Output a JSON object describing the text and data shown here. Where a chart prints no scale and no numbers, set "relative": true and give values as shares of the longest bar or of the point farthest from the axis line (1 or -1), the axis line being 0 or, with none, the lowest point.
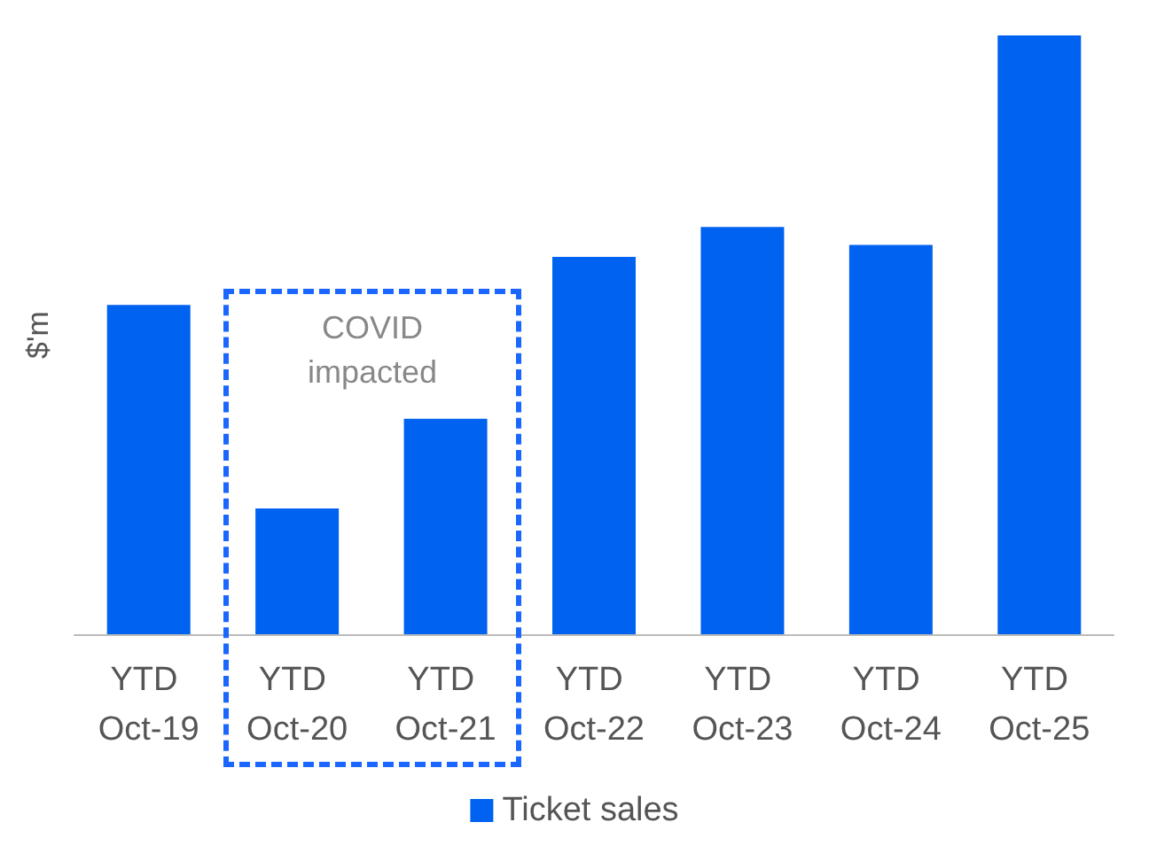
{
  "chart_data": {
    "type": "bar",
    "ylabel": "$'m",
    "relative": true,
    "legend": "bottom",
    "grid": false,
    "categories": [
      "YTD Oct-19",
      "YTD Oct-20",
      "YTD Oct-21",
      "YTD Oct-22",
      "YTD Oct-23",
      "YTD Oct-24",
      "YTD Oct-25"
    ],
    "series": [
      {
        "name": "Ticket sales",
        "color": "#0062f0",
        "values": [
          0.55,
          0.21,
          0.36,
          0.63,
          0.68,
          0.65,
          1
        ]
      }
    ],
    "annotations": [
      "COVID impacted"
    ]
  }
}
